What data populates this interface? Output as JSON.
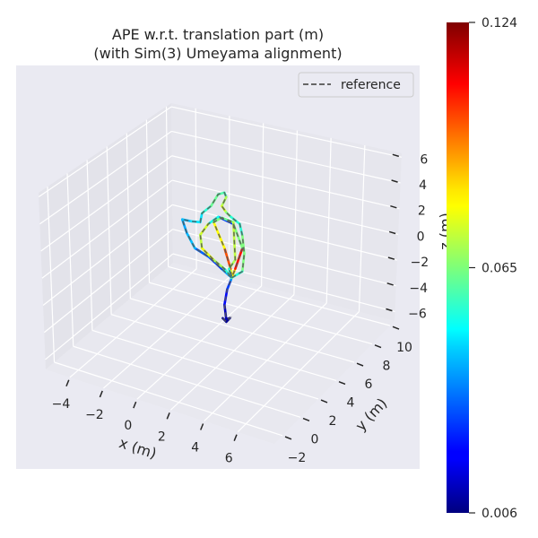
{
  "chart_data": {
    "type": "line",
    "projection": "3d",
    "title": "APE w.r.t. translation part (m)",
    "subtitle": "(with Sim(3) Umeyama alignment)",
    "xlabel": "x (m)",
    "ylabel": "y (m)",
    "zlabel": "z (m)",
    "xlim": [
      -5.44,
      8.18
    ],
    "ylim": [
      -2.9,
      10.5
    ],
    "zlim": [
      -6.73,
      6.3
    ],
    "x_ticks": [
      -4,
      -2,
      0,
      2,
      4,
      6
    ],
    "y_ticks": [
      -2,
      0,
      2,
      4,
      6,
      8,
      10
    ],
    "z_ticks": [
      -6,
      -4,
      -2,
      0,
      2,
      4,
      6
    ],
    "x_tick_labels": [
      "−4",
      "−2",
      "0",
      "2",
      "4",
      "6"
    ],
    "y_tick_labels": [
      "−2",
      "0",
      "2",
      "4",
      "6",
      "8",
      "10"
    ],
    "z_tick_labels": [
      "−6",
      "−4",
      "−2",
      "0",
      "2",
      "4",
      "6"
    ],
    "grid": true,
    "legend": {
      "placement": "top-right",
      "entries": [
        {
          "name": "reference",
          "style": "dashed",
          "color": "#555555"
        }
      ]
    },
    "colorbar": {
      "colormap": "jet",
      "min": 0.006,
      "max": 0.124,
      "ticks": [
        0.006,
        0.065,
        0.124
      ],
      "tick_labels": [
        "0.006",
        "0.065",
        "0.124"
      ]
    },
    "columns": [
      "x",
      "y",
      "z",
      "ape"
    ],
    "trajectory": [
      [
        0.98,
        4.5,
        -4.71,
        0.008
      ],
      [
        1.19,
        4.5,
        -4.89,
        0.007
      ],
      [
        1.41,
        4.5,
        -4.53,
        0.009
      ],
      [
        1.19,
        4.5,
        -4.69,
        0.008
      ],
      [
        1.12,
        4.5,
        -3.66,
        0.018
      ],
      [
        1.32,
        4.5,
        -2.45,
        0.025
      ],
      [
        1.56,
        4.5,
        -1.69,
        0.03
      ],
      [
        1.62,
        4.5,
        -1.47,
        0.045
      ],
      [
        1.04,
        4.5,
        -1.04,
        0.03
      ],
      [
        0.32,
        4.5,
        -0.48,
        0.025
      ],
      [
        -0.53,
        4.5,
        -0.15,
        0.04
      ],
      [
        -0.98,
        4.5,
        0.79,
        0.045
      ],
      [
        -1.22,
        4.5,
        1.69,
        0.035
      ],
      [
        -0.68,
        4.5,
        1.77,
        0.05
      ],
      [
        -0.14,
        4.5,
        1.92,
        0.045
      ],
      [
        -0.01,
        4.5,
        2.64,
        0.05
      ],
      [
        0.55,
        4.5,
        3.39,
        0.06
      ],
      [
        1.01,
        4.5,
        4.44,
        0.065
      ],
      [
        1.39,
        4.5,
        4.72,
        0.055
      ],
      [
        1.49,
        4.5,
        4.43,
        0.06
      ],
      [
        1.2,
        4.5,
        3.65,
        0.08
      ],
      [
        1.45,
        4.5,
        3.29,
        0.07
      ],
      [
        1.71,
        4.5,
        3.07,
        0.06
      ],
      [
        2.24,
        4.5,
        2.75,
        0.05
      ],
      [
        2.37,
        4.5,
        1.94,
        0.06
      ],
      [
        2.44,
        4.5,
        0.64,
        0.07
      ],
      [
        2.28,
        4.5,
        -0.74,
        0.06
      ],
      [
        1.62,
        4.5,
        -1.47,
        0.05
      ],
      [
        1.86,
        4.5,
        -0.71,
        0.115
      ],
      [
        2.34,
        4.5,
        1.0,
        0.1
      ],
      [
        1.86,
        4.5,
        2.59,
        0.03
      ],
      [
        0.96,
        4.5,
        2.76,
        0.025
      ],
      [
        0.34,
        4.5,
        1.98,
        0.08
      ],
      [
        -0.17,
        4.5,
        0.98,
        0.07
      ],
      [
        -0.1,
        4.5,
        0.02,
        0.075
      ],
      [
        0.58,
        4.5,
        -0.57,
        0.08
      ],
      [
        1.21,
        4.5,
        -0.98,
        0.06
      ],
      [
        1.62,
        4.5,
        -1.47,
        0.05
      ],
      [
        1.58,
        4.5,
        -0.82,
        0.11
      ],
      [
        1.26,
        4.5,
        0.57,
        0.09
      ],
      [
        0.67,
        4.5,
        2.25,
        0.07
      ],
      [
        1.17,
        4.5,
        2.78,
        0.06
      ],
      [
        1.86,
        4.5,
        2.73,
        0.065
      ],
      [
        1.88,
        4.5,
        -0.04,
        0.08
      ],
      [
        1.48,
        4.5,
        -0.87,
        0.06
      ],
      [
        1.62,
        4.5,
        -1.47,
        0.05
      ]
    ]
  }
}
